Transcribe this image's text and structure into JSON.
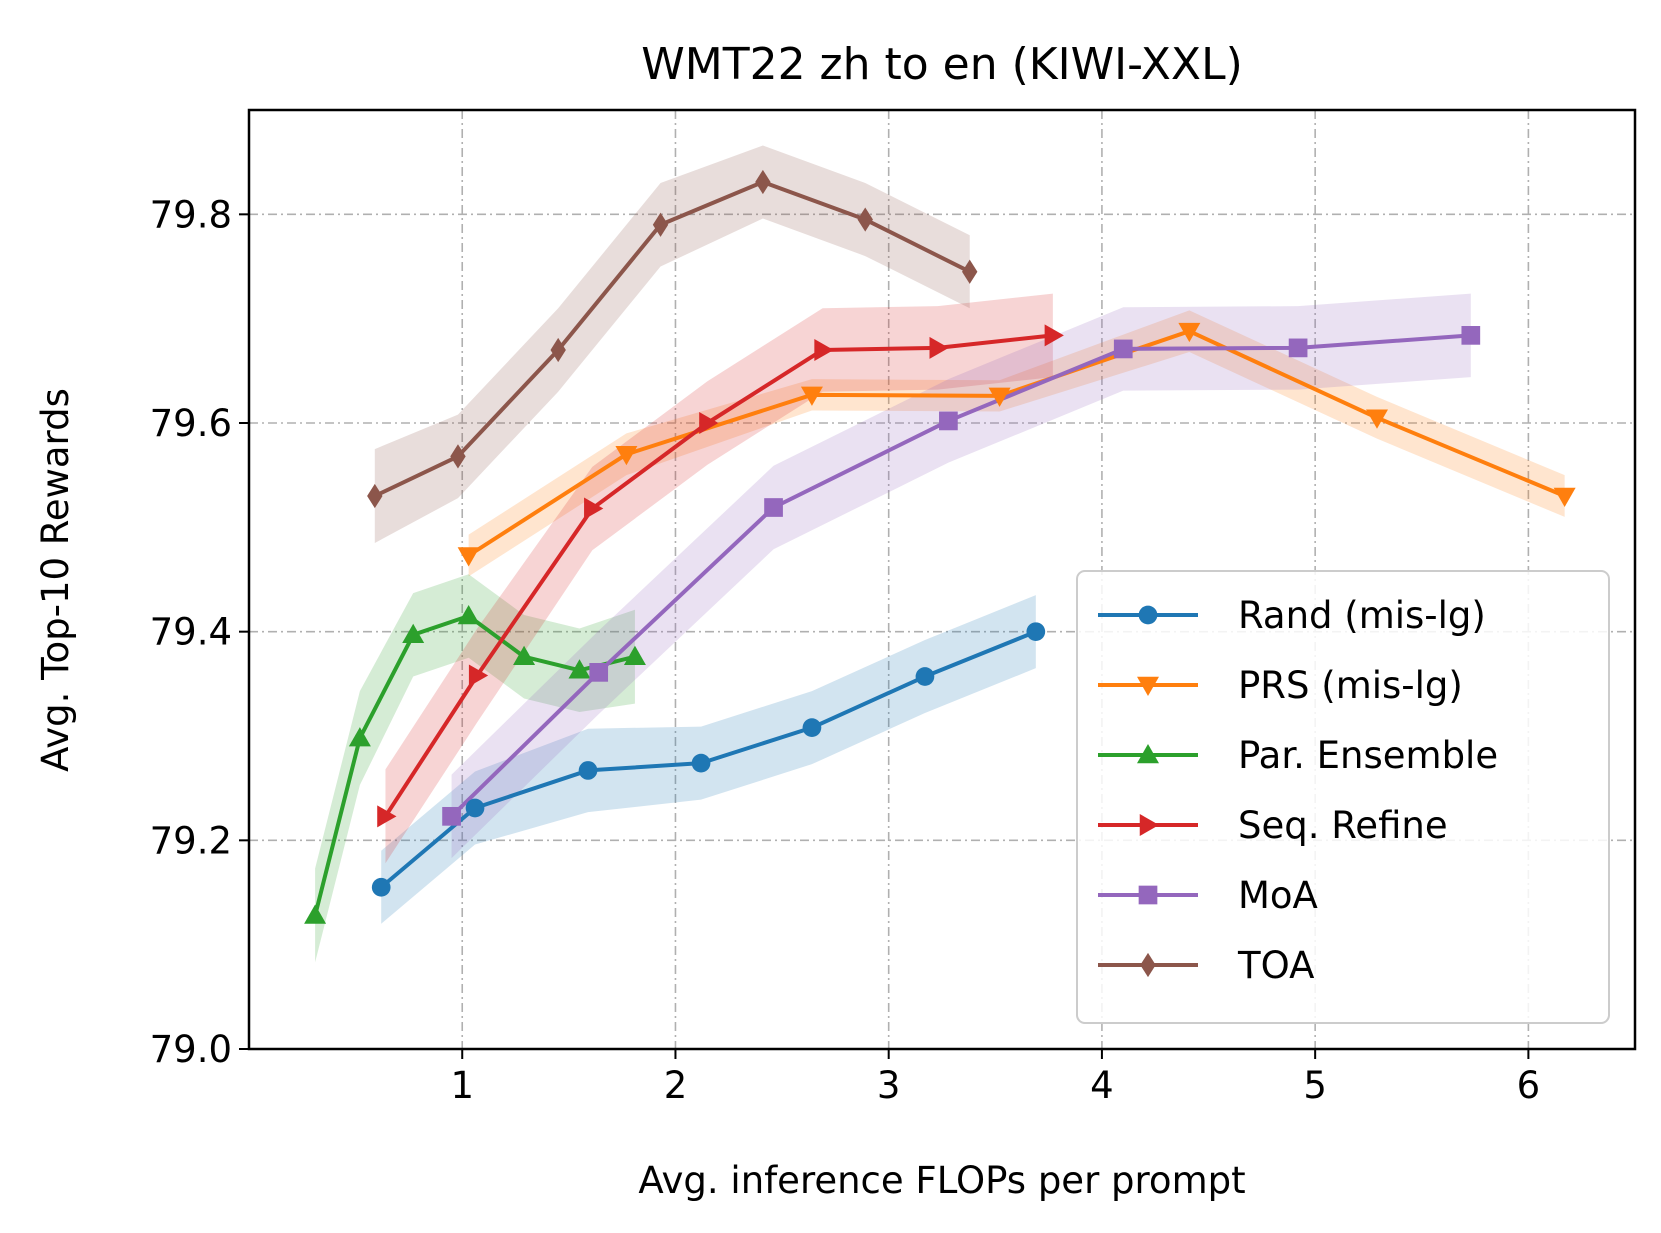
{
  "chart_data": {
    "type": "line",
    "title": "WMT22 zh to en (KIWI-XXL)",
    "xlabel": "Avg. inference FLOPs per prompt",
    "ylabel": "Avg. Top-10 Rewards",
    "xlim": [
      0.0,
      6.5
    ],
    "ylim": [
      79.0,
      79.9
    ],
    "xticks": [
      1,
      2,
      3,
      4,
      5,
      6
    ],
    "xtick_labels": [
      "1",
      "2",
      "3",
      "4",
      "5",
      "6"
    ],
    "yticks": [
      79.0,
      79.2,
      79.4,
      79.6,
      79.8
    ],
    "ytick_labels": [
      "79.0",
      "79.2",
      "79.4",
      "79.6",
      "79.8"
    ],
    "grid": true,
    "legend_position": "lower-right",
    "series": [
      {
        "name": "Rand (mis-lg)",
        "color": "#1f77b4",
        "marker": "circle",
        "x": [
          0.62,
          1.06,
          1.59,
          2.12,
          2.64,
          3.17,
          3.69
        ],
        "y": [
          79.155,
          79.231,
          79.267,
          79.274,
          79.308,
          79.357,
          79.4
        ],
        "band": [
          0.035,
          0.035,
          0.04,
          0.035,
          0.035,
          0.035,
          0.035
        ]
      },
      {
        "name": "PRS (mis-lg)",
        "color": "#ff7f0e",
        "marker": "triangle-down",
        "x": [
          1.03,
          1.77,
          2.64,
          3.52,
          4.41,
          5.29,
          6.17
        ],
        "y": [
          79.473,
          79.57,
          79.627,
          79.626,
          79.688,
          79.605,
          79.53
        ],
        "band": [
          0.02,
          0.02,
          0.015,
          0.015,
          0.02,
          0.02,
          0.02
        ]
      },
      {
        "name": "Par. Ensemble",
        "color": "#2ca02c",
        "marker": "triangle-up",
        "x": [
          0.31,
          0.52,
          0.77,
          1.03,
          1.29,
          1.55,
          1.81
        ],
        "y": [
          79.128,
          79.298,
          79.397,
          79.415,
          79.376,
          79.363,
          79.376
        ],
        "band": [
          0.045,
          0.045,
          0.04,
          0.04,
          0.04,
          0.04,
          0.045
        ]
      },
      {
        "name": "Seq. Refine",
        "color": "#d62728",
        "marker": "triangle-right",
        "x": [
          0.64,
          1.07,
          1.61,
          2.15,
          2.69,
          3.23,
          3.77
        ],
        "y": [
          79.223,
          79.358,
          79.518,
          79.6,
          79.67,
          79.672,
          79.684
        ],
        "band": [
          0.045,
          0.045,
          0.04,
          0.04,
          0.04,
          0.04,
          0.04
        ]
      },
      {
        "name": "MoA",
        "color": "#9467bd",
        "marker": "square",
        "x": [
          0.95,
          1.64,
          2.46,
          3.28,
          4.1,
          4.92,
          5.73
        ],
        "y": [
          79.223,
          79.361,
          79.519,
          79.602,
          79.671,
          79.672,
          79.684
        ],
        "band": [
          0.04,
          0.04,
          0.04,
          0.04,
          0.04,
          0.04,
          0.04
        ]
      },
      {
        "name": "TOA",
        "color": "#8c564b",
        "marker": "diamond",
        "x": [
          0.59,
          0.98,
          1.45,
          1.93,
          2.41,
          2.89,
          3.38
        ],
        "y": [
          79.53,
          79.568,
          79.67,
          79.79,
          79.831,
          79.795,
          79.745
        ],
        "band": [
          0.045,
          0.04,
          0.04,
          0.04,
          0.035,
          0.035,
          0.035
        ]
      }
    ]
  }
}
